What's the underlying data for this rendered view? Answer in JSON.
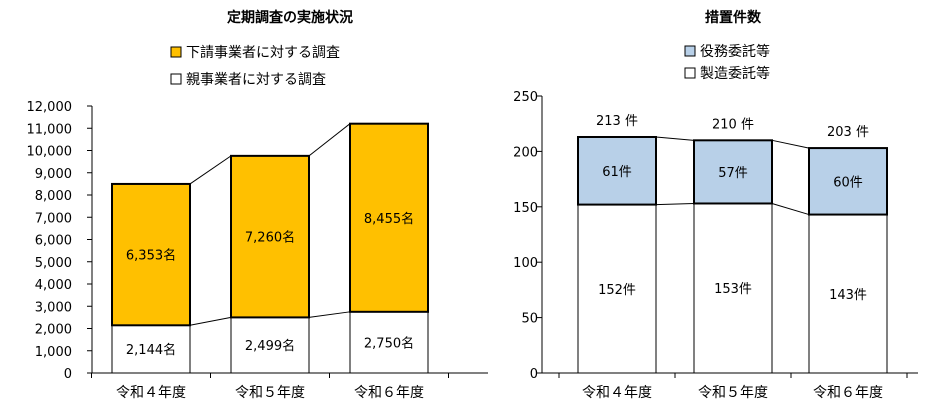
{
  "chart_data": [
    {
      "type": "bar",
      "stacked": true,
      "title": "定期調査の実施状況",
      "categories": [
        "令和４年度",
        "令和５年度",
        "令和６年度"
      ],
      "series": [
        {
          "name": "親事業者に対する調査",
          "color": "#ffffff",
          "values": [
            2144,
            2499,
            2750
          ],
          "labels": [
            "2,144名",
            "2,499名",
            "2,750名"
          ]
        },
        {
          "name": "下請事業者に対する調査",
          "color": "#ffc000",
          "values": [
            6353,
            7260,
            8455
          ],
          "labels": [
            "6,353名",
            "7,260名",
            "8,455名"
          ]
        }
      ],
      "legend": [
        "下請事業者に対する調査",
        "親事業者に対する調査"
      ],
      "ylim": [
        0,
        12000
      ],
      "yticks": [
        0,
        1000,
        2000,
        3000,
        4000,
        5000,
        6000,
        7000,
        8000,
        9000,
        10000,
        11000,
        12000
      ],
      "ytick_labels": [
        "0",
        "1,000",
        "2,000",
        "3,000",
        "4,000",
        "5,000",
        "6,000",
        "7,000",
        "8,000",
        "9,000",
        "10,000",
        "11,000",
        "12,000"
      ],
      "xlabel": "",
      "ylabel": ""
    },
    {
      "type": "bar",
      "stacked": true,
      "title": "措置件数",
      "categories": [
        "令和４年度",
        "令和５年度",
        "令和６年度"
      ],
      "series": [
        {
          "name": "製造委託等",
          "color": "#ffffff",
          "values": [
            152,
            153,
            143
          ],
          "labels": [
            "152件",
            "153件",
            "143件"
          ]
        },
        {
          "name": "役務委託等",
          "color": "#b8d0e8",
          "values": [
            61,
            57,
            60
          ],
          "labels": [
            "61件",
            "57件",
            "60件"
          ]
        }
      ],
      "totals": [
        213,
        210,
        203
      ],
      "total_labels": [
        "213 件",
        "210 件",
        "203 件"
      ],
      "legend": [
        "役務委託等",
        "製造委託等"
      ],
      "ylim": [
        0,
        250
      ],
      "yticks": [
        0,
        50,
        100,
        150,
        200,
        250
      ],
      "ytick_labels": [
        "0",
        "50",
        "100",
        "150",
        "200",
        "250"
      ],
      "xlabel": "",
      "ylabel": ""
    }
  ]
}
